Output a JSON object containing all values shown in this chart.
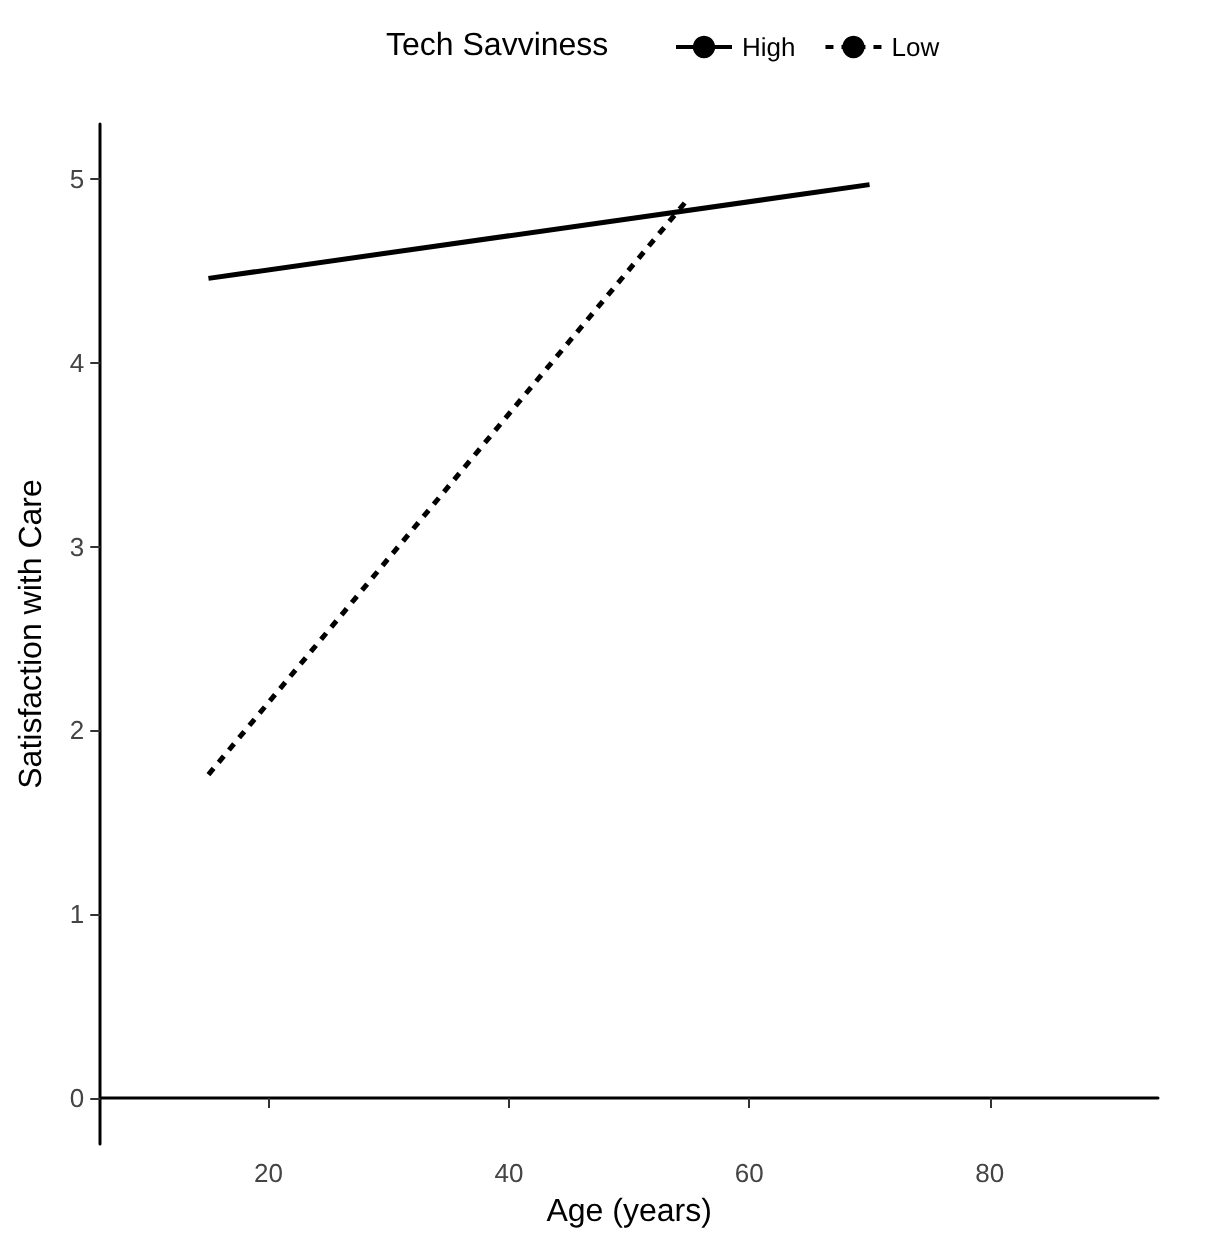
{
  "chart_data": {
    "type": "line",
    "xlabel": "Age (years)",
    "ylabel": "Satisfaction with Care",
    "legend_title": "Tech Savviness",
    "xlim": [
      6,
      94
    ],
    "xticks": [
      20,
      40,
      60,
      80
    ],
    "ylim": [
      -0.25,
      5.3
    ],
    "yticks": [
      0,
      1,
      2,
      3,
      4,
      5
    ],
    "grid": false,
    "legend": "top",
    "marker": "none",
    "series": [
      {
        "name": "High",
        "color": "#000000",
        "x": [
          15,
          70
        ],
        "values": [
          4.46,
          4.97
        ],
        "line_style": "solid"
      },
      {
        "name": "Low",
        "color": "#000000",
        "x": [
          15,
          55
        ],
        "values": [
          1.76,
          4.9
        ],
        "line_style": "dashed"
      }
    ]
  }
}
